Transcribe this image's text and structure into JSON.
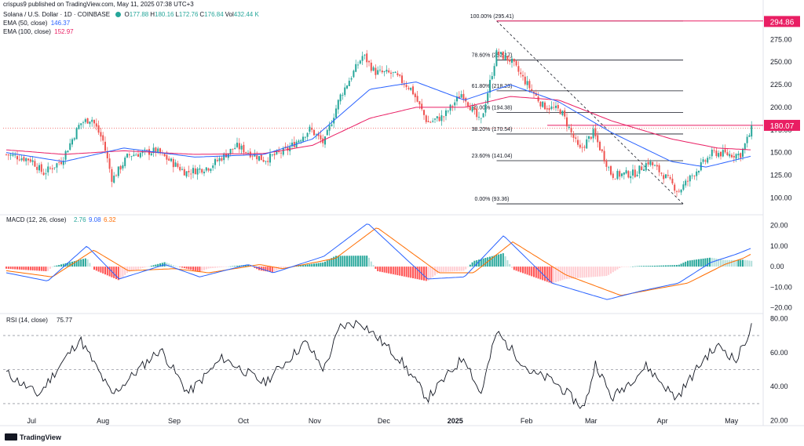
{
  "credit": "crispus9 published on TradingView.com, May 11, 2025 07:38 UTC+3",
  "header": {
    "symbol": "Solana / U.S. Dollar · 1D · COINBASE",
    "ohlc": [
      {
        "k": "O",
        "v": "177.88"
      },
      {
        "k": "H",
        "v": "180.16"
      },
      {
        "k": "L",
        "v": "172.76"
      },
      {
        "k": "C",
        "v": "176.84"
      },
      {
        "k": "Vol",
        "v": "432.44 K"
      }
    ],
    "ema50_label": "EMA (50, close)",
    "ema50_value": "146.37",
    "ema100_label": "EMA (100, close)",
    "ema100_value": "152.97"
  },
  "currency": "USD",
  "brand": "TradingView",
  "colors": {
    "up": "#26a69a",
    "down": "#ef5350",
    "ema50": "#2962ff",
    "ema100": "#e91e63",
    "macd": "#2962ff",
    "signal": "#ff6d00",
    "rsi": "#131722",
    "fib": "#131722",
    "label_pink": "#e91e63"
  },
  "chart_data": [
    {
      "type": "candlestick",
      "title": "Solana / U.S. Dollar · 1D · COINBASE",
      "x_ticks": [
        "Jul",
        "Aug",
        "Sep",
        "Oct",
        "Nov",
        "Dec",
        "2025",
        "Feb",
        "Mar",
        "Apr",
        "May"
      ],
      "y_ticks": [
        100,
        125,
        150,
        175,
        200,
        225,
        250,
        275
      ],
      "ylim": [
        83,
        303
      ],
      "price_labels": [
        {
          "value": "294.86",
          "color": "pink"
        },
        {
          "value": "180.07",
          "color": "pink"
        }
      ],
      "fib_levels": [
        {
          "label": "100.00% (295.41)",
          "value": 295.41
        },
        {
          "label": "78.60% (252.17)",
          "value": 252.17
        },
        {
          "label": "61.80% (218.23)",
          "value": 218.23
        },
        {
          "label": "50.00% (194.38)",
          "value": 194.38
        },
        {
          "label": "38.20% (170.54)",
          "value": 170.54
        },
        {
          "label": "23.60% (141.04)",
          "value": 141.04
        },
        {
          "label": "0.00% (93.36)",
          "value": 93.36
        }
      ],
      "close_path": [
        {
          "date": "2024-06-20",
          "v": 148
        },
        {
          "date": "2024-07-01",
          "v": 142
        },
        {
          "date": "2024-07-06",
          "v": 127
        },
        {
          "date": "2024-07-14",
          "v": 141
        },
        {
          "date": "2024-07-22",
          "v": 182
        },
        {
          "date": "2024-07-27",
          "v": 188
        },
        {
          "date": "2024-08-01",
          "v": 163
        },
        {
          "date": "2024-08-05",
          "v": 120
        },
        {
          "date": "2024-08-12",
          "v": 147
        },
        {
          "date": "2024-08-24",
          "v": 152
        },
        {
          "date": "2024-09-06",
          "v": 128
        },
        {
          "date": "2024-09-16",
          "v": 134
        },
        {
          "date": "2024-09-28",
          "v": 157
        },
        {
          "date": "2024-10-10",
          "v": 142
        },
        {
          "date": "2024-10-20",
          "v": 153
        },
        {
          "date": "2024-10-30",
          "v": 176
        },
        {
          "date": "2024-11-05",
          "v": 160
        },
        {
          "date": "2024-11-12",
          "v": 212
        },
        {
          "date": "2024-11-22",
          "v": 258
        },
        {
          "date": "2024-11-27",
          "v": 239
        },
        {
          "date": "2024-12-05",
          "v": 237
        },
        {
          "date": "2024-12-13",
          "v": 220
        },
        {
          "date": "2024-12-20",
          "v": 183
        },
        {
          "date": "2024-12-27",
          "v": 190
        },
        {
          "date": "2025-01-04",
          "v": 216
        },
        {
          "date": "2025-01-12",
          "v": 182
        },
        {
          "date": "2025-01-19",
          "v": 260
        },
        {
          "date": "2025-01-25",
          "v": 252
        },
        {
          "date": "2025-01-31",
          "v": 230
        },
        {
          "date": "2025-02-08",
          "v": 202
        },
        {
          "date": "2025-02-16",
          "v": 196
        },
        {
          "date": "2025-02-24",
          "v": 152
        },
        {
          "date": "2025-03-02",
          "v": 172
        },
        {
          "date": "2025-03-10",
          "v": 125
        },
        {
          "date": "2025-03-20",
          "v": 127
        },
        {
          "date": "2025-03-26",
          "v": 140
        },
        {
          "date": "2025-04-02",
          "v": 124
        },
        {
          "date": "2025-04-08",
          "v": 107
        },
        {
          "date": "2025-04-15",
          "v": 128
        },
        {
          "date": "2025-04-23",
          "v": 150
        },
        {
          "date": "2025-04-30",
          "v": 148
        },
        {
          "date": "2025-05-05",
          "v": 148
        },
        {
          "date": "2025-05-10",
          "v": 177
        }
      ],
      "ema50": [
        {
          "date": "2024-06-20",
          "v": 150
        },
        {
          "date": "2024-07-15",
          "v": 140
        },
        {
          "date": "2024-08-10",
          "v": 155
        },
        {
          "date": "2024-09-10",
          "v": 145
        },
        {
          "date": "2024-10-10",
          "v": 148
        },
        {
          "date": "2024-10-31",
          "v": 165
        },
        {
          "date": "2024-11-25",
          "v": 220
        },
        {
          "date": "2024-12-15",
          "v": 228
        },
        {
          "date": "2025-01-05",
          "v": 208
        },
        {
          "date": "2025-01-25",
          "v": 225
        },
        {
          "date": "2025-02-15",
          "v": 206
        },
        {
          "date": "2025-03-10",
          "v": 172
        },
        {
          "date": "2025-04-05",
          "v": 140
        },
        {
          "date": "2025-04-20",
          "v": 134
        },
        {
          "date": "2025-05-10",
          "v": 146.37
        }
      ],
      "ema100": [
        {
          "date": "2024-06-20",
          "v": 153
        },
        {
          "date": "2024-07-15",
          "v": 148
        },
        {
          "date": "2024-08-10",
          "v": 152
        },
        {
          "date": "2024-09-10",
          "v": 148
        },
        {
          "date": "2024-10-10",
          "v": 149
        },
        {
          "date": "2024-10-31",
          "v": 158
        },
        {
          "date": "2024-11-25",
          "v": 188
        },
        {
          "date": "2024-12-15",
          "v": 200
        },
        {
          "date": "2025-01-05",
          "v": 200
        },
        {
          "date": "2025-01-25",
          "v": 212
        },
        {
          "date": "2025-02-15",
          "v": 208
        },
        {
          "date": "2025-03-10",
          "v": 185
        },
        {
          "date": "2025-04-05",
          "v": 165
        },
        {
          "date": "2025-04-25",
          "v": 155
        },
        {
          "date": "2025-05-10",
          "v": 152.97
        }
      ]
    },
    {
      "type": "line",
      "title": "MACD (12, 26, close)",
      "values_shown": [
        "2.76",
        "9.08",
        "6.32"
      ],
      "y_ticks": [
        "20.00",
        "10.00",
        "0.00",
        "−10.00",
        "−20.00"
      ],
      "ylim": [
        -22,
        24
      ],
      "series": [
        {
          "name": "MACD",
          "points": [
            {
              "date": "2024-06-20",
              "v": -3
            },
            {
              "date": "2024-07-08",
              "v": -7
            },
            {
              "date": "2024-07-25",
              "v": 10
            },
            {
              "date": "2024-08-08",
              "v": -6
            },
            {
              "date": "2024-08-28",
              "v": 1
            },
            {
              "date": "2024-09-12",
              "v": -5
            },
            {
              "date": "2024-10-03",
              "v": 1
            },
            {
              "date": "2024-10-14",
              "v": -3
            },
            {
              "date": "2024-11-05",
              "v": 5
            },
            {
              "date": "2024-11-24",
              "v": 21
            },
            {
              "date": "2024-12-20",
              "v": -6
            },
            {
              "date": "2025-01-05",
              "v": -5
            },
            {
              "date": "2025-01-22",
              "v": 15
            },
            {
              "date": "2025-02-12",
              "v": -8
            },
            {
              "date": "2025-03-08",
              "v": -16
            },
            {
              "date": "2025-03-22",
              "v": -12
            },
            {
              "date": "2025-04-08",
              "v": -8
            },
            {
              "date": "2025-04-22",
              "v": 2
            },
            {
              "date": "2025-05-03",
              "v": 6
            },
            {
              "date": "2025-05-10",
              "v": 9.08
            }
          ]
        },
        {
          "name": "Signal",
          "points": [
            {
              "date": "2024-06-20",
              "v": -2
            },
            {
              "date": "2024-07-10",
              "v": -5
            },
            {
              "date": "2024-07-28",
              "v": 8
            },
            {
              "date": "2024-08-12",
              "v": -2
            },
            {
              "date": "2024-09-01",
              "v": -1
            },
            {
              "date": "2024-09-16",
              "v": -3
            },
            {
              "date": "2024-10-08",
              "v": 1
            },
            {
              "date": "2024-10-18",
              "v": -1
            },
            {
              "date": "2024-11-10",
              "v": 4
            },
            {
              "date": "2024-11-28",
              "v": 19
            },
            {
              "date": "2024-12-25",
              "v": -3
            },
            {
              "date": "2025-01-09",
              "v": -3
            },
            {
              "date": "2025-01-26",
              "v": 12
            },
            {
              "date": "2025-02-18",
              "v": -4
            },
            {
              "date": "2025-03-14",
              "v": -14
            },
            {
              "date": "2025-03-28",
              "v": -11
            },
            {
              "date": "2025-04-12",
              "v": -8
            },
            {
              "date": "2025-04-28",
              "v": 1
            },
            {
              "date": "2025-05-06",
              "v": 4
            },
            {
              "date": "2025-05-10",
              "v": 6.32
            }
          ]
        }
      ],
      "histogram_last": 2.76
    },
    {
      "type": "line",
      "title": "RSI (14, close)",
      "value_shown": "75.77",
      "y_ticks": [
        "80.00",
        "60.00",
        "40.00",
        "20.00"
      ],
      "ylim": [
        18,
        82
      ],
      "bands": [
        70,
        50,
        30
      ],
      "series": [
        {
          "name": "RSI",
          "points": [
            {
              "date": "2024-06-20",
              "v": 48
            },
            {
              "date": "2024-07-04",
              "v": 35
            },
            {
              "date": "2024-07-12",
              "v": 50
            },
            {
              "date": "2024-07-22",
              "v": 68
            },
            {
              "date": "2024-08-05",
              "v": 35
            },
            {
              "date": "2024-08-18",
              "v": 52
            },
            {
              "date": "2024-08-26",
              "v": 62
            },
            {
              "date": "2024-09-07",
              "v": 36
            },
            {
              "date": "2024-09-22",
              "v": 57
            },
            {
              "date": "2024-10-10",
              "v": 42
            },
            {
              "date": "2024-10-28",
              "v": 66
            },
            {
              "date": "2024-11-05",
              "v": 50
            },
            {
              "date": "2024-11-12",
              "v": 75
            },
            {
              "date": "2024-11-21",
              "v": 78
            },
            {
              "date": "2024-12-08",
              "v": 56
            },
            {
              "date": "2024-12-20",
              "v": 33
            },
            {
              "date": "2025-01-05",
              "v": 58
            },
            {
              "date": "2025-01-12",
              "v": 35
            },
            {
              "date": "2025-01-19",
              "v": 72
            },
            {
              "date": "2025-02-03",
              "v": 48
            },
            {
              "date": "2025-02-12",
              "v": 44
            },
            {
              "date": "2025-02-26",
              "v": 27
            },
            {
              "date": "2025-03-03",
              "v": 54
            },
            {
              "date": "2025-03-10",
              "v": 33
            },
            {
              "date": "2025-03-25",
              "v": 52
            },
            {
              "date": "2025-04-07",
              "v": 33
            },
            {
              "date": "2025-04-20",
              "v": 58
            },
            {
              "date": "2025-04-26",
              "v": 64
            },
            {
              "date": "2025-05-03",
              "v": 55
            },
            {
              "date": "2025-05-10",
              "v": 75.77
            }
          ]
        }
      ]
    }
  ]
}
